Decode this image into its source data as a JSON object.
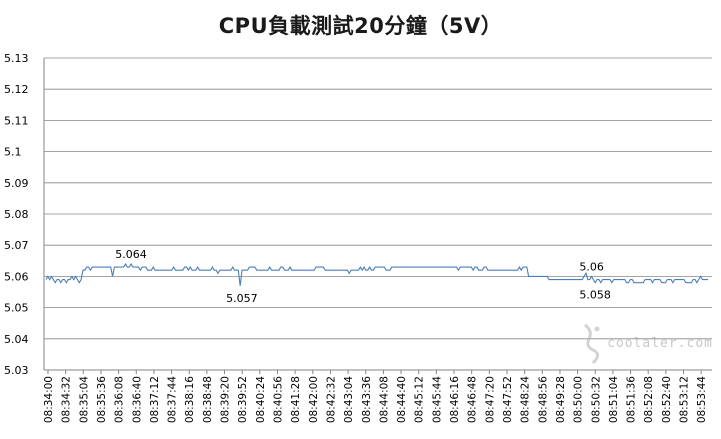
{
  "chart_data": {
    "type": "line",
    "title": "CPU負載測試20分鐘（5V）",
    "xlabel": "",
    "ylabel": "",
    "ylim": [
      5.03,
      5.13
    ],
    "y_ticks": [
      "5.03",
      "5.04",
      "5.05",
      "5.06",
      "5.07",
      "5.08",
      "5.09",
      "5.1",
      "5.11",
      "5.12",
      "5.13"
    ],
    "x_tick_labels": [
      "08:34:00",
      "08:34:32",
      "08:35:04",
      "08:35:36",
      "08:36:08",
      "08:36:40",
      "08:37:12",
      "08:37:44",
      "08:38:16",
      "08:38:48",
      "08:39:20",
      "08:39:52",
      "08:40:24",
      "08:40:56",
      "08:41:28",
      "08:42:00",
      "08:42:32",
      "08:43:04",
      "08:43:36",
      "08:44:08",
      "08:44:40",
      "08:45:12",
      "08:45:44",
      "08:46:16",
      "08:46:48",
      "08:47:20",
      "08:47:52",
      "08:48:24",
      "08:48:56",
      "08:49:28",
      "08:50:00",
      "08:50:32",
      "08:51:04",
      "08:51:36",
      "08:52:08",
      "08:52:40",
      "08:53:12",
      "08:53:44"
    ],
    "grid": "horizontal",
    "legend": "none",
    "series": [
      {
        "values": [
          5.059,
          5.06,
          5.059,
          5.06,
          5.059,
          5.058,
          5.059,
          5.059,
          5.058,
          5.059,
          5.059,
          5.058,
          5.059,
          5.059,
          5.06,
          5.059,
          5.06,
          5.059,
          5.058,
          5.059,
          5.062,
          5.062,
          5.063,
          5.063,
          5.062,
          5.063,
          5.063,
          5.063,
          5.063,
          5.063,
          5.063,
          5.063,
          5.063,
          5.063,
          5.063,
          5.063,
          5.06,
          5.063,
          5.063,
          5.063,
          5.063,
          5.063,
          5.063,
          5.064,
          5.063,
          5.063,
          5.064,
          5.063,
          5.063,
          5.063,
          5.063,
          5.062,
          5.063,
          5.063,
          5.063,
          5.062,
          5.062,
          5.062,
          5.063,
          5.062,
          5.062,
          5.062,
          5.062,
          5.062,
          5.062,
          5.062,
          5.062,
          5.062,
          5.062,
          5.063,
          5.062,
          5.062,
          5.062,
          5.062,
          5.062,
          5.063,
          5.063,
          5.062,
          5.063,
          5.062,
          5.062,
          5.062,
          5.063,
          5.062,
          5.062,
          5.062,
          5.062,
          5.062,
          5.062,
          5.062,
          5.063,
          5.062,
          5.062,
          5.061,
          5.062,
          5.062,
          5.062,
          5.062,
          5.062,
          5.062,
          5.062,
          5.063,
          5.062,
          5.062,
          5.062,
          5.057,
          5.062,
          5.062,
          5.062,
          5.062,
          5.063,
          5.063,
          5.063,
          5.063,
          5.062,
          5.062,
          5.062,
          5.062,
          5.062,
          5.062,
          5.062,
          5.063,
          5.062,
          5.062,
          5.062,
          5.062,
          5.062,
          5.063,
          5.063,
          5.062,
          5.062,
          5.062,
          5.063,
          5.062,
          5.062,
          5.062,
          5.062,
          5.062,
          5.062,
          5.062,
          5.062,
          5.062,
          5.062,
          5.062,
          5.062,
          5.062,
          5.063,
          5.063,
          5.063,
          5.063,
          5.063,
          5.062,
          5.062,
          5.062,
          5.062,
          5.062,
          5.062,
          5.062,
          5.062,
          5.062,
          5.062,
          5.062,
          5.062,
          5.062,
          5.061,
          5.062,
          5.062,
          5.062,
          5.062,
          5.062,
          5.063,
          5.062,
          5.063,
          5.062,
          5.062,
          5.063,
          5.062,
          5.062,
          5.063,
          5.063,
          5.063,
          5.063,
          5.063,
          5.063,
          5.062,
          5.062,
          5.062,
          5.063,
          5.063,
          5.063,
          5.063,
          5.063,
          5.063,
          5.063,
          5.063,
          5.063,
          5.063,
          5.063,
          5.063,
          5.063,
          5.063,
          5.063,
          5.063,
          5.063,
          5.063,
          5.063,
          5.063,
          5.063,
          5.063,
          5.063,
          5.063,
          5.063,
          5.063,
          5.063,
          5.063,
          5.063,
          5.063,
          5.063,
          5.063,
          5.063,
          5.063,
          5.063,
          5.063,
          5.062,
          5.063,
          5.063,
          5.063,
          5.063,
          5.063,
          5.063,
          5.063,
          5.062,
          5.063,
          5.063,
          5.062,
          5.062,
          5.062,
          5.063,
          5.063,
          5.062,
          5.062,
          5.062,
          5.062,
          5.062,
          5.062,
          5.062,
          5.062,
          5.062,
          5.062,
          5.062,
          5.062,
          5.062,
          5.062,
          5.062,
          5.062,
          5.062,
          5.063,
          5.062,
          5.063,
          5.063,
          5.063,
          5.06,
          5.06,
          5.06,
          5.06,
          5.06,
          5.06,
          5.06,
          5.06,
          5.06,
          5.06,
          5.06,
          5.059,
          5.059,
          5.059,
          5.059,
          5.059,
          5.059,
          5.059,
          5.059,
          5.059,
          5.059,
          5.059,
          5.059,
          5.059,
          5.059,
          5.059,
          5.059,
          5.059,
          5.059,
          5.059,
          5.06,
          5.061,
          5.059,
          5.059,
          5.06,
          5.059,
          5.058,
          5.059,
          5.059,
          5.058,
          5.059,
          5.059,
          5.059,
          5.059,
          5.059,
          5.058,
          5.059,
          5.059,
          5.059,
          5.059,
          5.059,
          5.059,
          5.059,
          5.058,
          5.058,
          5.059,
          5.059,
          5.058,
          5.058,
          5.058,
          5.058,
          5.058,
          5.058,
          5.059,
          5.059,
          5.059,
          5.059,
          5.058,
          5.059,
          5.059,
          5.059,
          5.059,
          5.058,
          5.058,
          5.058,
          5.059,
          5.059,
          5.059,
          5.058,
          5.059,
          5.059,
          5.059,
          5.059,
          5.059,
          5.059,
          5.058,
          5.058,
          5.058,
          5.058,
          5.059,
          5.059,
          5.058,
          5.059,
          5.06,
          5.059,
          5.059,
          5.059,
          5.059
        ]
      }
    ],
    "annotations": [
      {
        "text": "5.064",
        "x_index": 45,
        "y": 5.064
      },
      {
        "text": "5.057",
        "x_index": 105,
        "y": 5.057
      },
      {
        "text": "5.06",
        "x_index": 296,
        "y": 5.06
      },
      {
        "text": "5.058",
        "x_index": 296,
        "y": 5.058
      }
    ],
    "colors": {
      "line": "#4a7ebb",
      "grid": "#868686",
      "axis": "#868686"
    }
  },
  "watermark": {
    "text": "coolaler.com"
  }
}
